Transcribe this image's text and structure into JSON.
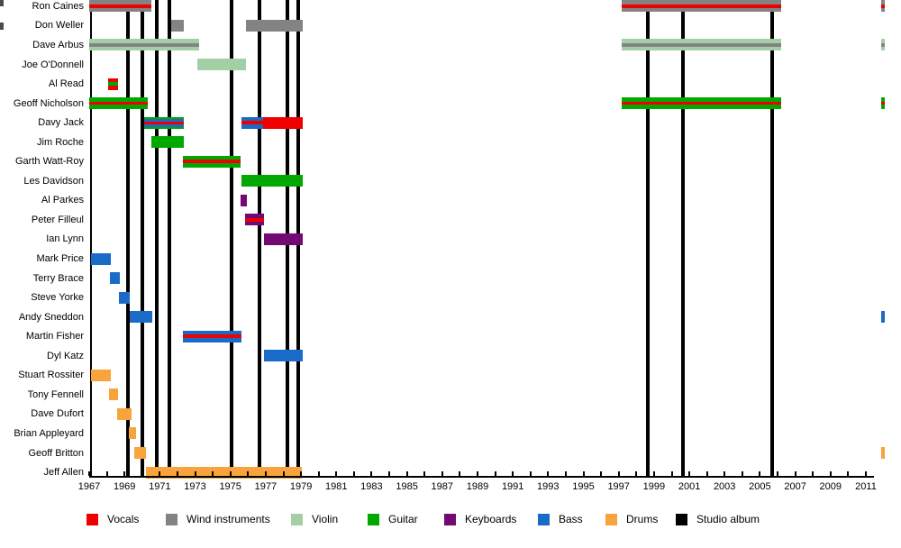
{
  "chart_data": {
    "type": "bar",
    "subtype": "personnel-timeline-gantt",
    "title": "",
    "x_axis": {
      "start_year": 1967,
      "end_year": 2011,
      "labeled_years": [
        1967,
        1969,
        1971,
        1973,
        1975,
        1977,
        1979,
        1981,
        1983,
        1985,
        1987,
        1989,
        1991,
        1993,
        1995,
        1997,
        1999,
        2001,
        2003,
        2005,
        2007,
        2009,
        2011
      ],
      "minor_tick_every": 1
    },
    "palette": {
      "vocals": "#EE0000",
      "wind": "#838383",
      "violin": "#A4CFA4",
      "guitar": "#00A800",
      "keyboards": "#730973",
      "bass": "#1A6BC8",
      "drums": "#F8A33B",
      "album": "#000000"
    },
    "legend": [
      {
        "label": "Vocals",
        "role": "vocals"
      },
      {
        "label": "Wind instruments",
        "role": "wind"
      },
      {
        "label": "Violin",
        "role": "violin"
      },
      {
        "label": "Guitar",
        "role": "guitar"
      },
      {
        "label": "Keyboards",
        "role": "keyboards"
      },
      {
        "label": "Bass",
        "role": "bass"
      },
      {
        "label": "Drums",
        "role": "drums"
      },
      {
        "label": "Studio album",
        "role": "album"
      }
    ],
    "album_years": [
      1969.2,
      1970.0,
      1970.83,
      1971.54,
      1975.07,
      1976.65,
      1978.23,
      1978.85,
      1998.65,
      2000.64,
      2005.7
    ],
    "members": [
      {
        "name": "Ron Caines",
        "bars": [
          {
            "start": 1967.0,
            "end": 1970.5,
            "stripes": [
              "wind",
              "vocals",
              "wind"
            ]
          },
          {
            "start": 1997.15,
            "end": 2006.2,
            "stripes": [
              "wind",
              "vocals",
              "wind"
            ]
          },
          {
            "start": 2011.85,
            "end": 2012.1,
            "stripes": [
              "wind",
              "vocals",
              "wind"
            ]
          }
        ]
      },
      {
        "name": "Don Weller",
        "bars": [
          {
            "start": 1971.65,
            "end": 1972.35,
            "stripes": [
              "wind"
            ]
          },
          {
            "start": 1975.9,
            "end": 1979.1,
            "stripes": [
              "wind"
            ]
          }
        ]
      },
      {
        "name": "Dave Arbus",
        "bars": [
          {
            "start": 1967.0,
            "end": 1973.2,
            "stripes": [
              "violin",
              "wind",
              "violin"
            ]
          },
          {
            "start": 1997.15,
            "end": 2006.2,
            "stripes": [
              "violin",
              "wind",
              "violin"
            ]
          },
          {
            "start": 2011.85,
            "end": 2012.1,
            "stripes": [
              "violin",
              "wind",
              "violin"
            ]
          }
        ]
      },
      {
        "name": "Joe O'Donnell",
        "bars": [
          {
            "start": 1973.1,
            "end": 1975.9,
            "stripes": [
              "violin"
            ]
          }
        ]
      },
      {
        "name": "Al Read",
        "bars": [
          {
            "start": 1968.05,
            "end": 1968.65,
            "stripes": [
              "vocals",
              "guitar",
              "vocals"
            ]
          }
        ]
      },
      {
        "name": "Geoff Nicholson",
        "bars": [
          {
            "start": 1967.0,
            "end": 1970.3,
            "stripes": [
              "guitar",
              "vocals",
              "guitar"
            ]
          },
          {
            "start": 1997.15,
            "end": 2006.2,
            "stripes": [
              "guitar",
              "vocals",
              "guitar"
            ]
          },
          {
            "start": 2011.85,
            "end": 2012.1,
            "stripes": [
              "guitar",
              "vocals",
              "guitar"
            ]
          }
        ]
      },
      {
        "name": "Davy Jack",
        "bars": [
          {
            "start": 1970.1,
            "end": 1972.35,
            "stripes": [
              "guitar",
              "bass",
              "vocals",
              "bass",
              "guitar"
            ]
          },
          {
            "start": 1975.6,
            "end": 1976.85,
            "stripes": [
              "bass",
              "vocals",
              "bass"
            ]
          },
          {
            "start": 1976.85,
            "end": 1979.1,
            "stripes": [
              "vocals"
            ]
          }
        ]
      },
      {
        "name": "Jim Roche",
        "bars": [
          {
            "start": 1970.5,
            "end": 1972.35,
            "stripes": [
              "guitar"
            ]
          }
        ]
      },
      {
        "name": "Garth Watt-Roy",
        "bars": [
          {
            "start": 1972.3,
            "end": 1975.6,
            "stripes": [
              "guitar",
              "vocals",
              "guitar"
            ]
          }
        ]
      },
      {
        "name": "Les Davidson",
        "bars": [
          {
            "start": 1975.6,
            "end": 1979.1,
            "stripes": [
              "guitar"
            ]
          }
        ]
      },
      {
        "name": "Al Parkes",
        "bars": [
          {
            "start": 1975.55,
            "end": 1975.95,
            "stripes": [
              "keyboards"
            ]
          }
        ]
      },
      {
        "name": "Peter Filleul",
        "bars": [
          {
            "start": 1975.85,
            "end": 1976.9,
            "stripes": [
              "keyboards",
              "vocals",
              "keyboards"
            ]
          }
        ]
      },
      {
        "name": "Ian Lynn",
        "bars": [
          {
            "start": 1976.9,
            "end": 1979.1,
            "stripes": [
              "keyboards"
            ]
          }
        ]
      },
      {
        "name": "Mark Price",
        "bars": [
          {
            "start": 1967.1,
            "end": 1968.2,
            "stripes": [
              "bass"
            ]
          }
        ]
      },
      {
        "name": "Terry Brace",
        "bars": [
          {
            "start": 1968.15,
            "end": 1968.75,
            "stripes": [
              "bass"
            ]
          }
        ]
      },
      {
        "name": "Steve Yorke",
        "bars": [
          {
            "start": 1968.7,
            "end": 1969.3,
            "stripes": [
              "bass"
            ]
          }
        ]
      },
      {
        "name": "Andy Sneddon",
        "bars": [
          {
            "start": 1969.3,
            "end": 1970.55,
            "stripes": [
              "bass"
            ]
          },
          {
            "start": 2011.85,
            "end": 2012.1,
            "stripes": [
              "bass"
            ]
          }
        ]
      },
      {
        "name": "Martin Fisher",
        "bars": [
          {
            "start": 1972.3,
            "end": 1975.65,
            "stripes": [
              "bass",
              "vocals",
              "bass"
            ]
          }
        ]
      },
      {
        "name": "Dyl Katz",
        "bars": [
          {
            "start": 1976.9,
            "end": 1979.1,
            "stripes": [
              "bass"
            ]
          }
        ]
      },
      {
        "name": "Stuart Rossiter",
        "bars": [
          {
            "start": 1967.1,
            "end": 1968.2,
            "stripes": [
              "drums"
            ]
          }
        ]
      },
      {
        "name": "Tony Fennell",
        "bars": [
          {
            "start": 1968.1,
            "end": 1968.65,
            "stripes": [
              "drums"
            ]
          }
        ]
      },
      {
        "name": "Dave Dufort",
        "bars": [
          {
            "start": 1968.6,
            "end": 1969.4,
            "stripes": [
              "drums"
            ]
          }
        ]
      },
      {
        "name": "Brian Appleyard",
        "bars": [
          {
            "start": 1969.25,
            "end": 1969.65,
            "stripes": [
              "drums"
            ]
          }
        ]
      },
      {
        "name": "Geoff Britton",
        "bars": [
          {
            "start": 1969.55,
            "end": 1970.2,
            "stripes": [
              "drums"
            ]
          },
          {
            "start": 2011.85,
            "end": 2012.1,
            "stripes": [
              "drums"
            ]
          }
        ]
      },
      {
        "name": "Jeff Allen",
        "bars": [
          {
            "start": 1970.2,
            "end": 1979.05,
            "stripes": [
              "drums"
            ]
          }
        ]
      }
    ]
  }
}
